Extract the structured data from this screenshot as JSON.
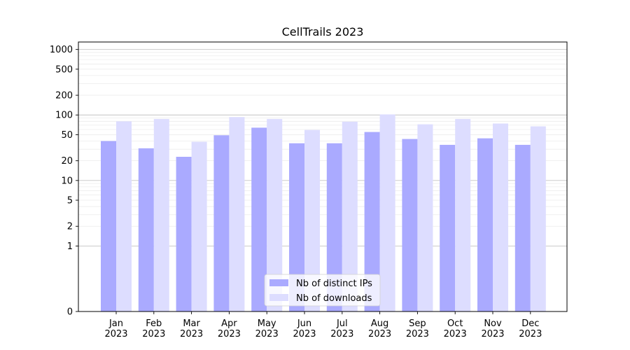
{
  "chart_data": {
    "type": "bar",
    "title": "CellTrails 2023",
    "xlabel": "",
    "ylabel": "",
    "y_scale": "symlog",
    "y_tick_labels": [
      "0",
      "1",
      "2",
      "5",
      "10",
      "20",
      "50",
      "100",
      "200",
      "500",
      "1000"
    ],
    "y_tick_values": [
      0,
      1,
      2,
      5,
      10,
      20,
      50,
      100,
      200,
      500,
      1000
    ],
    "ylim": [
      0,
      1300
    ],
    "grid": true,
    "legend_position": "bottom-center",
    "categories": [
      "Jan\n2023",
      "Feb\n2023",
      "Mar\n2023",
      "Apr\n2023",
      "May\n2023",
      "Jun\n2023",
      "Jul\n2023",
      "Aug\n2023",
      "Sep\n2023",
      "Oct\n2023",
      "Nov\n2023",
      "Dec\n2023"
    ],
    "series": [
      {
        "name": "Nb of distinct IPs",
        "color": "#aaaaff",
        "values": [
          40,
          31,
          23,
          49,
          64,
          37,
          37,
          55,
          43,
          35,
          44,
          35
        ]
      },
      {
        "name": "Nb of downloads",
        "color": "#ddddff",
        "values": [
          80,
          87,
          39,
          93,
          87,
          59,
          79,
          102,
          72,
          87,
          74,
          67
        ]
      }
    ]
  }
}
